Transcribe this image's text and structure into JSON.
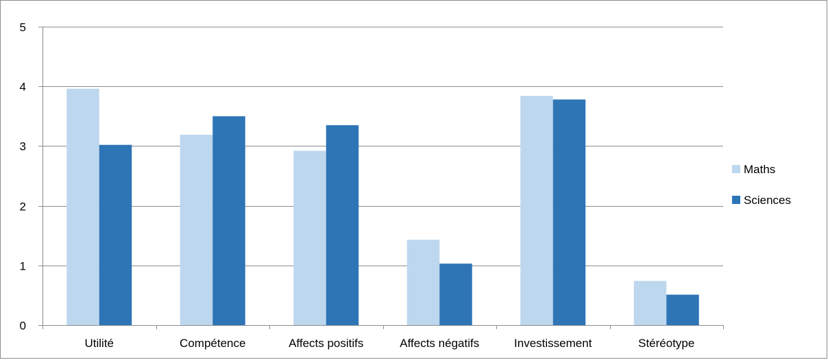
{
  "chart_data": {
    "type": "bar",
    "title": "",
    "xlabel": "",
    "ylabel": "",
    "ylim": [
      0,
      5
    ],
    "yticks": [
      0,
      1,
      2,
      3,
      4,
      5
    ],
    "grid": true,
    "legend_position": "right",
    "categories": [
      "Utilité",
      "Compétence",
      "Affects positifs",
      "Affects négatifs",
      "Investissement",
      "Stéréotype"
    ],
    "series": [
      {
        "name": "Maths",
        "color": "#bdd7ee",
        "values": [
          3.96,
          3.19,
          2.92,
          1.43,
          3.84,
          0.74
        ]
      },
      {
        "name": "Sciences",
        "color": "#2e75b6",
        "values": [
          3.02,
          3.5,
          3.35,
          1.03,
          3.78,
          0.51
        ]
      }
    ],
    "colors": {
      "grid": "#8c8c8c",
      "axis": "#8c8c8c"
    }
  }
}
